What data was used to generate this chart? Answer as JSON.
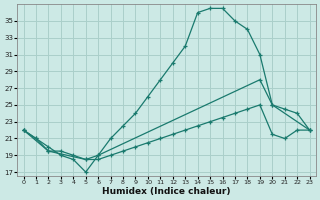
{
  "xlabel": "Humidex (Indice chaleur)",
  "bg_color": "#cce9e5",
  "grid_color": "#b8d8d4",
  "line_color": "#1a7a6e",
  "xlim": [
    -0.5,
    23.5
  ],
  "ylim": [
    16.5,
    37.0
  ],
  "yticks": [
    17,
    19,
    21,
    23,
    25,
    27,
    29,
    31,
    33,
    35
  ],
  "xticks": [
    0,
    1,
    2,
    3,
    4,
    5,
    6,
    7,
    8,
    9,
    10,
    11,
    12,
    13,
    14,
    15,
    16,
    17,
    18,
    19,
    20,
    21,
    22,
    23
  ],
  "curve_x": [
    0,
    1,
    2,
    3,
    4,
    5,
    6,
    7,
    8,
    9,
    10,
    11,
    12,
    13,
    14,
    15,
    16,
    17,
    18,
    19,
    20,
    21,
    22,
    23
  ],
  "curve_y": [
    22,
    21,
    20,
    19,
    18.5,
    17,
    19,
    21,
    22.5,
    24,
    26,
    28,
    30,
    32,
    36,
    36.5,
    36.5,
    35,
    34,
    31,
    25,
    24.5,
    24,
    22
  ],
  "line2_x": [
    0,
    2,
    5,
    6,
    19,
    20,
    23
  ],
  "line2_y": [
    22,
    19.5,
    18.5,
    19,
    28,
    25,
    22
  ],
  "line3_x": [
    0,
    1,
    2,
    3,
    4,
    5,
    6,
    7,
    8,
    9,
    10,
    11,
    12,
    13,
    14,
    15,
    16,
    17,
    18,
    19,
    20,
    21,
    22,
    23
  ],
  "line3_y": [
    22,
    21,
    19.5,
    19.5,
    19,
    18.5,
    18.5,
    19,
    19.5,
    20,
    20.5,
    21,
    21.5,
    22,
    22.5,
    23,
    23.5,
    24,
    24.5,
    25,
    21.5,
    21,
    22,
    22
  ]
}
